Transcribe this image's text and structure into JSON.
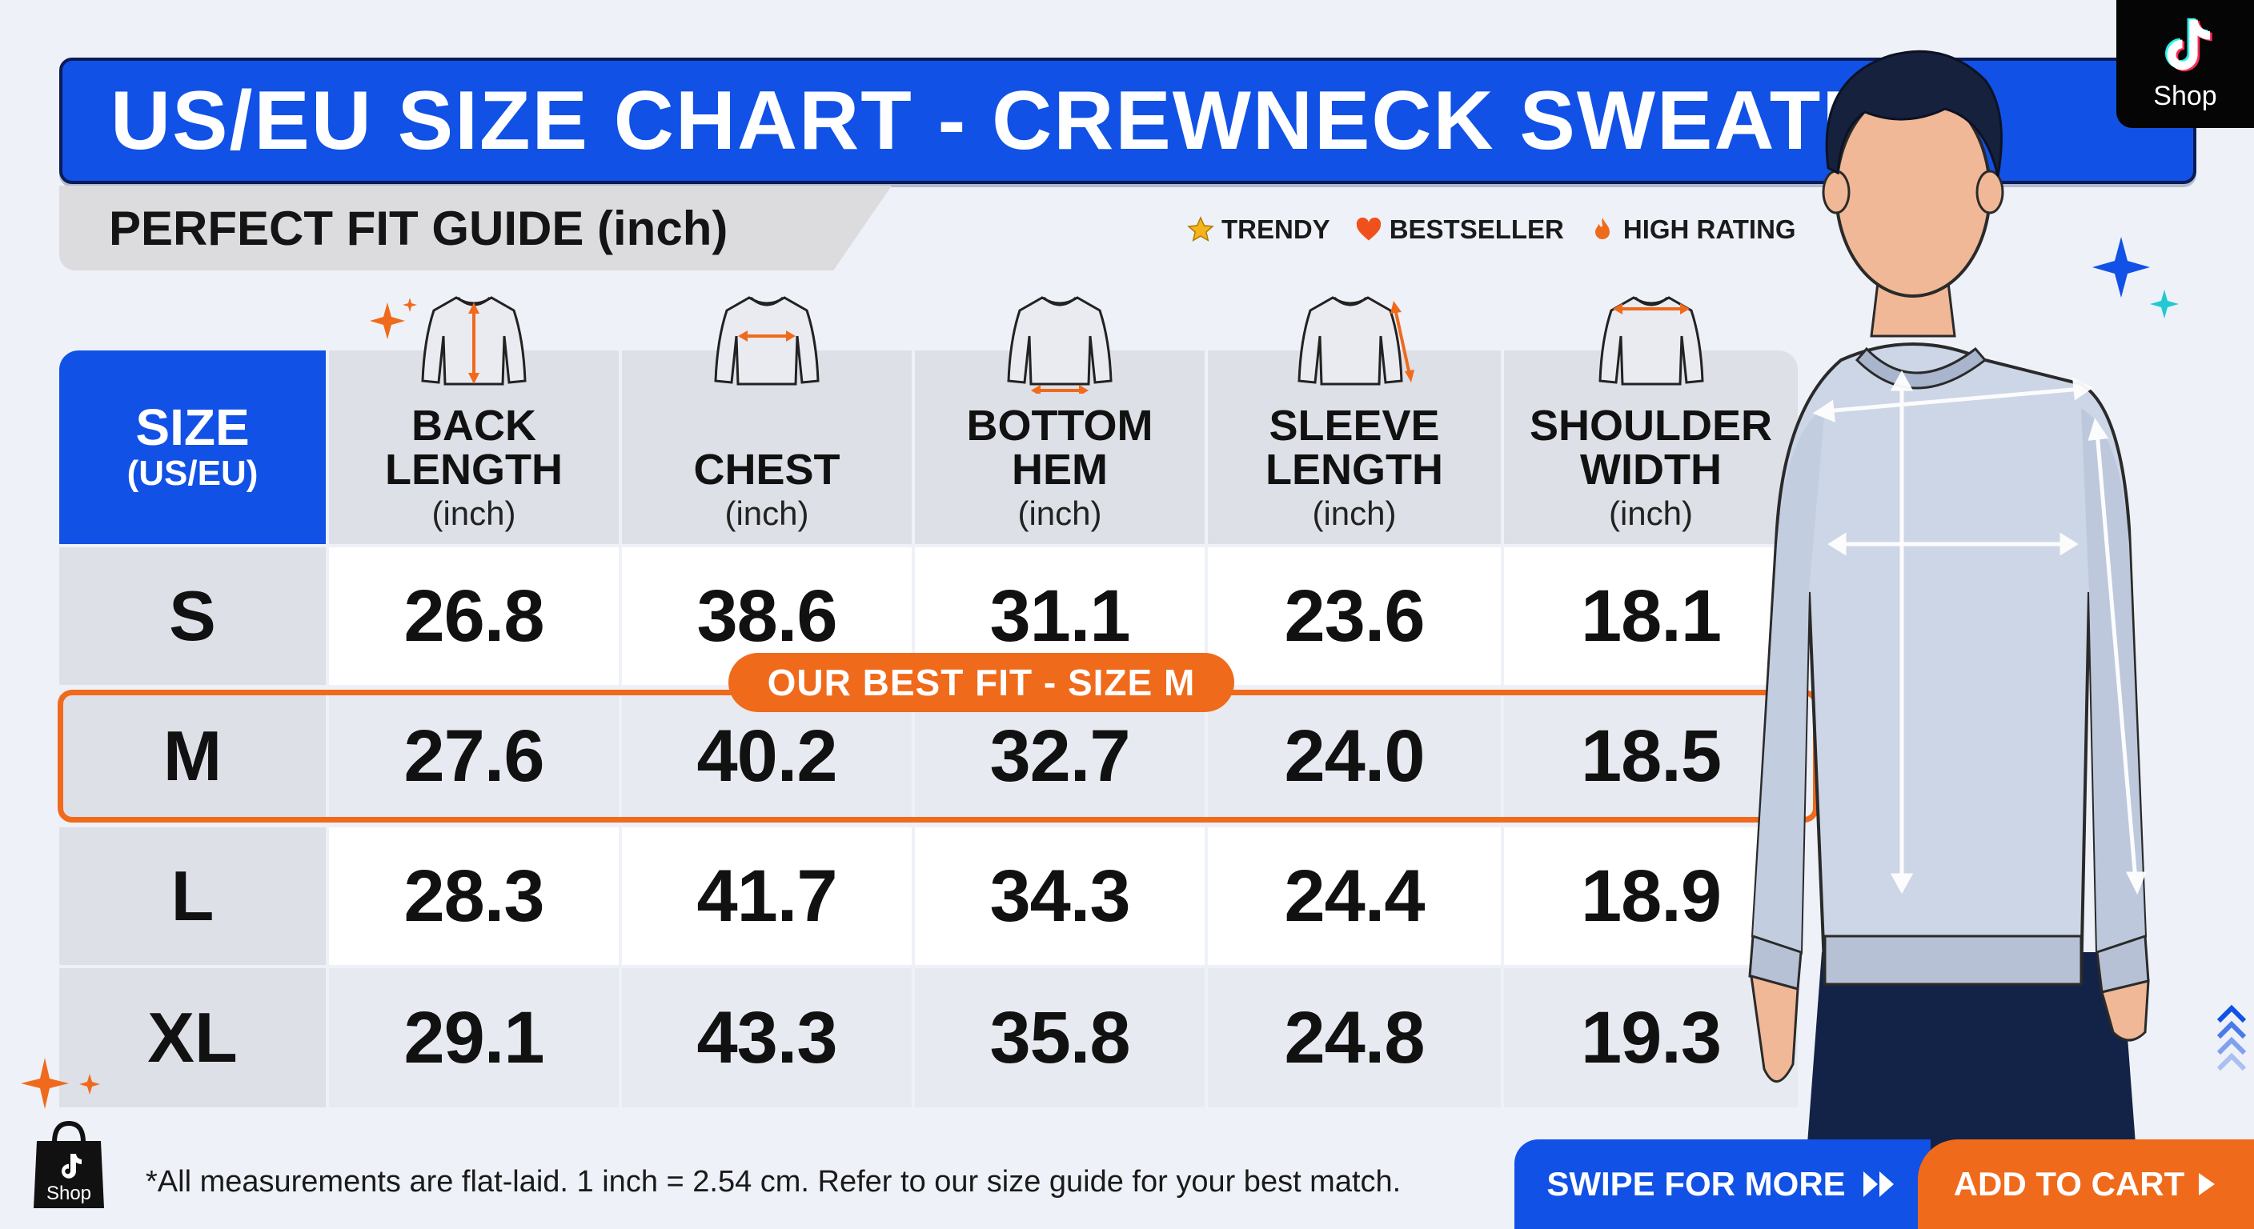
{
  "header": {
    "title": "US/EU SIZE CHART - CREWNECK SWEATER",
    "subtitle": "PERFECT FIT GUIDE (inch)"
  },
  "badges": [
    {
      "label": "TRENDY",
      "icon": "star-icon",
      "color": "#f5b41a"
    },
    {
      "label": "BESTSELLER",
      "icon": "heart-icon",
      "color": "#f0501c"
    },
    {
      "label": "HIGH RATING",
      "icon": "flame-icon",
      "color": "#f06a1c"
    }
  ],
  "brand_tag": {
    "label": "Shop",
    "icon": "tiktok-icon"
  },
  "table": {
    "size_header": {
      "main": "SIZE",
      "sub": "(US/EU)"
    },
    "columns": [
      {
        "lines": [
          "BACK",
          "LENGTH"
        ],
        "unit": "(inch)",
        "icon": "sweater-back-length-icon"
      },
      {
        "lines": [
          "CHEST"
        ],
        "unit": "(inch)",
        "icon": "sweater-chest-icon"
      },
      {
        "lines": [
          "BOTTOM",
          "HEM"
        ],
        "unit": "(inch)",
        "icon": "sweater-bottom-hem-icon"
      },
      {
        "lines": [
          "SLEEVE",
          "LENGTH"
        ],
        "unit": "(inch)",
        "icon": "sweater-sleeve-length-icon"
      },
      {
        "lines": [
          "SHOULDER",
          "WIDTH"
        ],
        "unit": "(inch)",
        "icon": "sweater-shoulder-width-icon"
      }
    ],
    "rows": [
      {
        "size": "S",
        "values": [
          "26.8",
          "38.6",
          "31.1",
          "23.6",
          "18.1"
        ]
      },
      {
        "size": "M",
        "values": [
          "27.6",
          "40.2",
          "32.7",
          "24.0",
          "18.5"
        ]
      },
      {
        "size": "L",
        "values": [
          "28.3",
          "41.7",
          "34.3",
          "24.4",
          "18.9"
        ]
      },
      {
        "size": "XL",
        "values": [
          "29.1",
          "43.3",
          "35.8",
          "24.8",
          "19.3"
        ]
      }
    ],
    "highlight_label": "OUR BEST FIT - SIZE M"
  },
  "footer": {
    "note": "*All measurements are flat-laid. 1 inch = 2.54 cm. Refer to our size guide for your best match.",
    "shop_label": "Shop",
    "swipe_label": "SWIPE FOR MORE",
    "cart_label": "ADD TO CART"
  },
  "colors": {
    "primary_blue": "#1151e6",
    "accent_orange": "#f06a1c",
    "header_gray": "#dde0e7",
    "background": "#eef1f7"
  }
}
